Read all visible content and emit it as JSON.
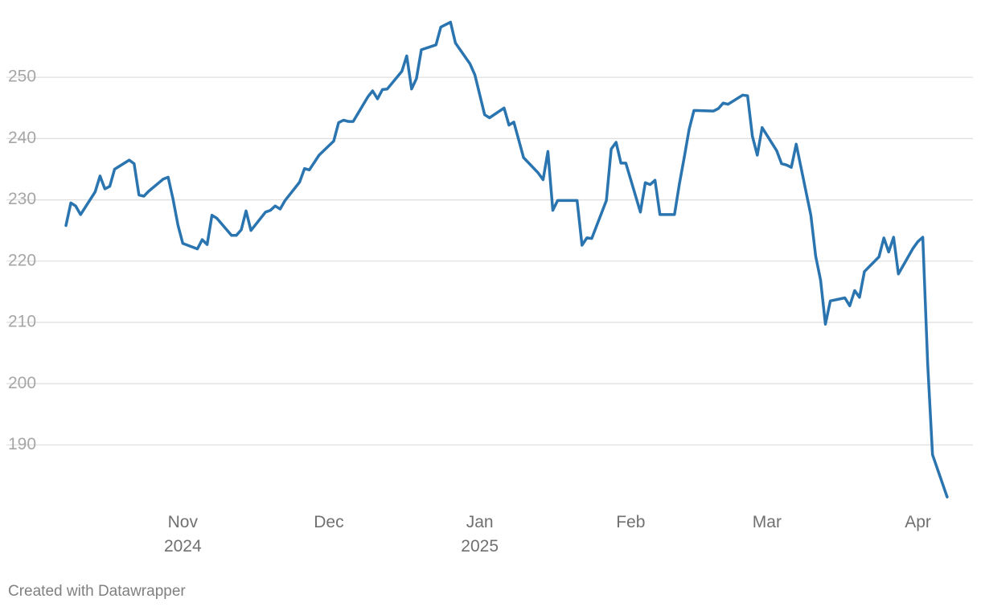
{
  "chart_data": {
    "type": "line",
    "title": "",
    "xlabel": "",
    "ylabel": "",
    "ylim": [
      181,
      260
    ],
    "y_ticks": [
      190,
      200,
      210,
      220,
      230,
      240,
      250
    ],
    "x_range": [
      "2024-10-08",
      "2025-04-09"
    ],
    "x_ticks": [
      {
        "date": "2024-11-01",
        "label": "Nov",
        "sublabel": "2024"
      },
      {
        "date": "2024-12-01",
        "label": "Dec",
        "sublabel": ""
      },
      {
        "date": "2025-01-01",
        "label": "Jan",
        "sublabel": "2025"
      },
      {
        "date": "2025-02-01",
        "label": "Feb",
        "sublabel": ""
      },
      {
        "date": "2025-03-01",
        "label": "Mar",
        "sublabel": ""
      },
      {
        "date": "2025-04-01",
        "label": "Apr",
        "sublabel": ""
      }
    ],
    "grid": true,
    "legend": "none",
    "line_color": "#2a74b0",
    "series": [
      {
        "points": [
          [
            "2024-10-08",
            225.8
          ],
          [
            "2024-10-09",
            229.5
          ],
          [
            "2024-10-10",
            229.0
          ],
          [
            "2024-10-11",
            227.6
          ],
          [
            "2024-10-14",
            231.3
          ],
          [
            "2024-10-15",
            233.9
          ],
          [
            "2024-10-16",
            231.8
          ],
          [
            "2024-10-17",
            232.2
          ],
          [
            "2024-10-18",
            235.0
          ],
          [
            "2024-10-21",
            236.5
          ],
          [
            "2024-10-22",
            235.9
          ],
          [
            "2024-10-23",
            230.8
          ],
          [
            "2024-10-24",
            230.6
          ],
          [
            "2024-10-25",
            231.4
          ],
          [
            "2024-10-28",
            233.4
          ],
          [
            "2024-10-29",
            233.7
          ],
          [
            "2024-10-30",
            230.1
          ],
          [
            "2024-10-31",
            225.9
          ],
          [
            "2024-11-01",
            222.9
          ],
          [
            "2024-11-04",
            222.0
          ],
          [
            "2024-11-05",
            223.5
          ],
          [
            "2024-11-06",
            222.7
          ],
          [
            "2024-11-07",
            227.5
          ],
          [
            "2024-11-08",
            227.0
          ],
          [
            "2024-11-11",
            224.2
          ],
          [
            "2024-11-12",
            224.2
          ],
          [
            "2024-11-13",
            225.1
          ],
          [
            "2024-11-14",
            228.2
          ],
          [
            "2024-11-15",
            225.0
          ],
          [
            "2024-11-18",
            228.0
          ],
          [
            "2024-11-19",
            228.3
          ],
          [
            "2024-11-20",
            229.0
          ],
          [
            "2024-11-21",
            228.5
          ],
          [
            "2024-11-22",
            229.9
          ],
          [
            "2024-11-25",
            232.9
          ],
          [
            "2024-11-26",
            235.1
          ],
          [
            "2024-11-27",
            234.9
          ],
          [
            "2024-11-29",
            237.3
          ],
          [
            "2024-12-02",
            239.6
          ],
          [
            "2024-12-03",
            242.6
          ],
          [
            "2024-12-04",
            243.0
          ],
          [
            "2024-12-05",
            242.8
          ],
          [
            "2024-12-06",
            242.8
          ],
          [
            "2024-12-09",
            246.8
          ],
          [
            "2024-12-10",
            247.8
          ],
          [
            "2024-12-11",
            246.5
          ],
          [
            "2024-12-12",
            248.0
          ],
          [
            "2024-12-13",
            248.1
          ],
          [
            "2024-12-16",
            251.0
          ],
          [
            "2024-12-17",
            253.5
          ],
          [
            "2024-12-18",
            248.1
          ],
          [
            "2024-12-19",
            249.8
          ],
          [
            "2024-12-20",
            254.5
          ],
          [
            "2024-12-23",
            255.3
          ],
          [
            "2024-12-24",
            258.2
          ],
          [
            "2024-12-26",
            259.0
          ],
          [
            "2024-12-27",
            255.6
          ],
          [
            "2024-12-30",
            252.2
          ],
          [
            "2024-12-31",
            250.4
          ],
          [
            "2025-01-02",
            243.9
          ],
          [
            "2025-01-03",
            243.4
          ],
          [
            "2025-01-06",
            245.0
          ],
          [
            "2025-01-07",
            242.2
          ],
          [
            "2025-01-08",
            242.7
          ],
          [
            "2025-01-10",
            236.9
          ],
          [
            "2025-01-13",
            234.4
          ],
          [
            "2025-01-14",
            233.3
          ],
          [
            "2025-01-15",
            237.9
          ],
          [
            "2025-01-16",
            228.3
          ],
          [
            "2025-01-17",
            229.9
          ],
          [
            "2025-01-21",
            229.9
          ],
          [
            "2025-01-22",
            222.6
          ],
          [
            "2025-01-23",
            223.8
          ],
          [
            "2025-01-24",
            223.7
          ],
          [
            "2025-01-27",
            229.9
          ],
          [
            "2025-01-28",
            238.3
          ],
          [
            "2025-01-29",
            239.4
          ],
          [
            "2025-01-30",
            236.0
          ],
          [
            "2025-01-31",
            236.0
          ],
          [
            "2025-02-03",
            228.0
          ],
          [
            "2025-02-04",
            232.8
          ],
          [
            "2025-02-05",
            232.5
          ],
          [
            "2025-02-06",
            233.2
          ],
          [
            "2025-02-07",
            227.6
          ],
          [
            "2025-02-10",
            227.6
          ],
          [
            "2025-02-11",
            232.6
          ],
          [
            "2025-02-12",
            236.9
          ],
          [
            "2025-02-13",
            241.5
          ],
          [
            "2025-02-14",
            244.6
          ],
          [
            "2025-02-18",
            244.5
          ],
          [
            "2025-02-19",
            244.9
          ],
          [
            "2025-02-20",
            245.8
          ],
          [
            "2025-02-21",
            245.6
          ],
          [
            "2025-02-24",
            247.1
          ],
          [
            "2025-02-25",
            247.0
          ],
          [
            "2025-02-26",
            240.4
          ],
          [
            "2025-02-27",
            237.3
          ],
          [
            "2025-02-28",
            241.8
          ],
          [
            "2025-03-03",
            238.0
          ],
          [
            "2025-03-04",
            235.9
          ],
          [
            "2025-03-05",
            235.7
          ],
          [
            "2025-03-06",
            235.3
          ],
          [
            "2025-03-07",
            239.1
          ],
          [
            "2025-03-10",
            227.5
          ],
          [
            "2025-03-11",
            220.8
          ],
          [
            "2025-03-12",
            216.9
          ],
          [
            "2025-03-13",
            209.7
          ],
          [
            "2025-03-14",
            213.5
          ],
          [
            "2025-03-17",
            214.0
          ],
          [
            "2025-03-18",
            212.7
          ],
          [
            "2025-03-19",
            215.2
          ],
          [
            "2025-03-20",
            214.1
          ],
          [
            "2025-03-21",
            218.3
          ],
          [
            "2025-03-24",
            220.7
          ],
          [
            "2025-03-25",
            223.8
          ],
          [
            "2025-03-26",
            221.5
          ],
          [
            "2025-03-27",
            223.9
          ],
          [
            "2025-03-28",
            217.9
          ],
          [
            "2025-03-31",
            222.1
          ],
          [
            "2025-04-01",
            223.2
          ],
          [
            "2025-04-02",
            223.9
          ],
          [
            "2025-04-03",
            203.2
          ],
          [
            "2025-04-04",
            188.4
          ],
          [
            "2025-04-07",
            181.5
          ]
        ]
      }
    ]
  },
  "footer": {
    "credit": "Created with Datawrapper"
  }
}
